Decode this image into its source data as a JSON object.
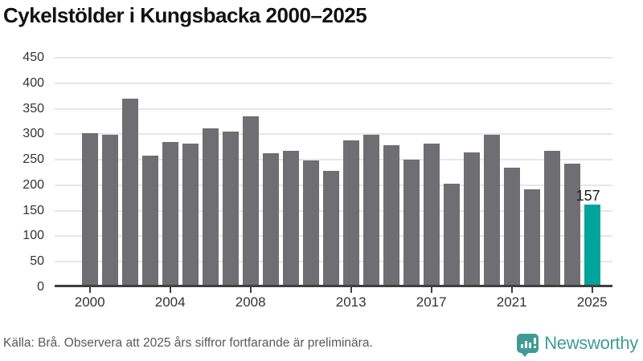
{
  "title": "Cykelstölder i Kungsbacka 2000–2025",
  "footer": {
    "source_text": "Källa: Brå. Observera att 2025 års siffror fortfarande är preliminära.",
    "brand_name": "Newsworthy"
  },
  "colors": {
    "bar": "#6f6e73",
    "highlight": "#00a49b",
    "brand": "#3f9c95",
    "grid": "#e6e6e6",
    "axis": "#3f3f3f",
    "tick_text": "#333333",
    "title_text": "#121212",
    "source_text": "#595959"
  },
  "chart_data": {
    "type": "bar",
    "title": "Cykelstölder i Kungsbacka 2000–2025",
    "categories": [
      2000,
      2001,
      2002,
      2003,
      2004,
      2005,
      2006,
      2007,
      2008,
      2009,
      2010,
      2011,
      2012,
      2013,
      2014,
      2015,
      2016,
      2017,
      2018,
      2019,
      2020,
      2021,
      2022,
      2023,
      2024,
      2025
    ],
    "values": [
      298,
      294,
      365,
      253,
      280,
      277,
      307,
      300,
      330,
      258,
      263,
      244,
      223,
      284,
      295,
      274,
      245,
      277,
      199,
      260,
      294,
      230,
      187,
      263,
      238,
      157
    ],
    "highlight_index": 25,
    "highlight_label": "157",
    "ylim": [
      0,
      450
    ],
    "yticks": [
      0,
      50,
      100,
      150,
      200,
      250,
      300,
      350,
      400,
      450
    ],
    "xtick_years": [
      2000,
      2004,
      2008,
      2013,
      2017,
      2021,
      2025
    ],
    "grid": true,
    "legend": false,
    "xlabel": "",
    "ylabel": ""
  }
}
